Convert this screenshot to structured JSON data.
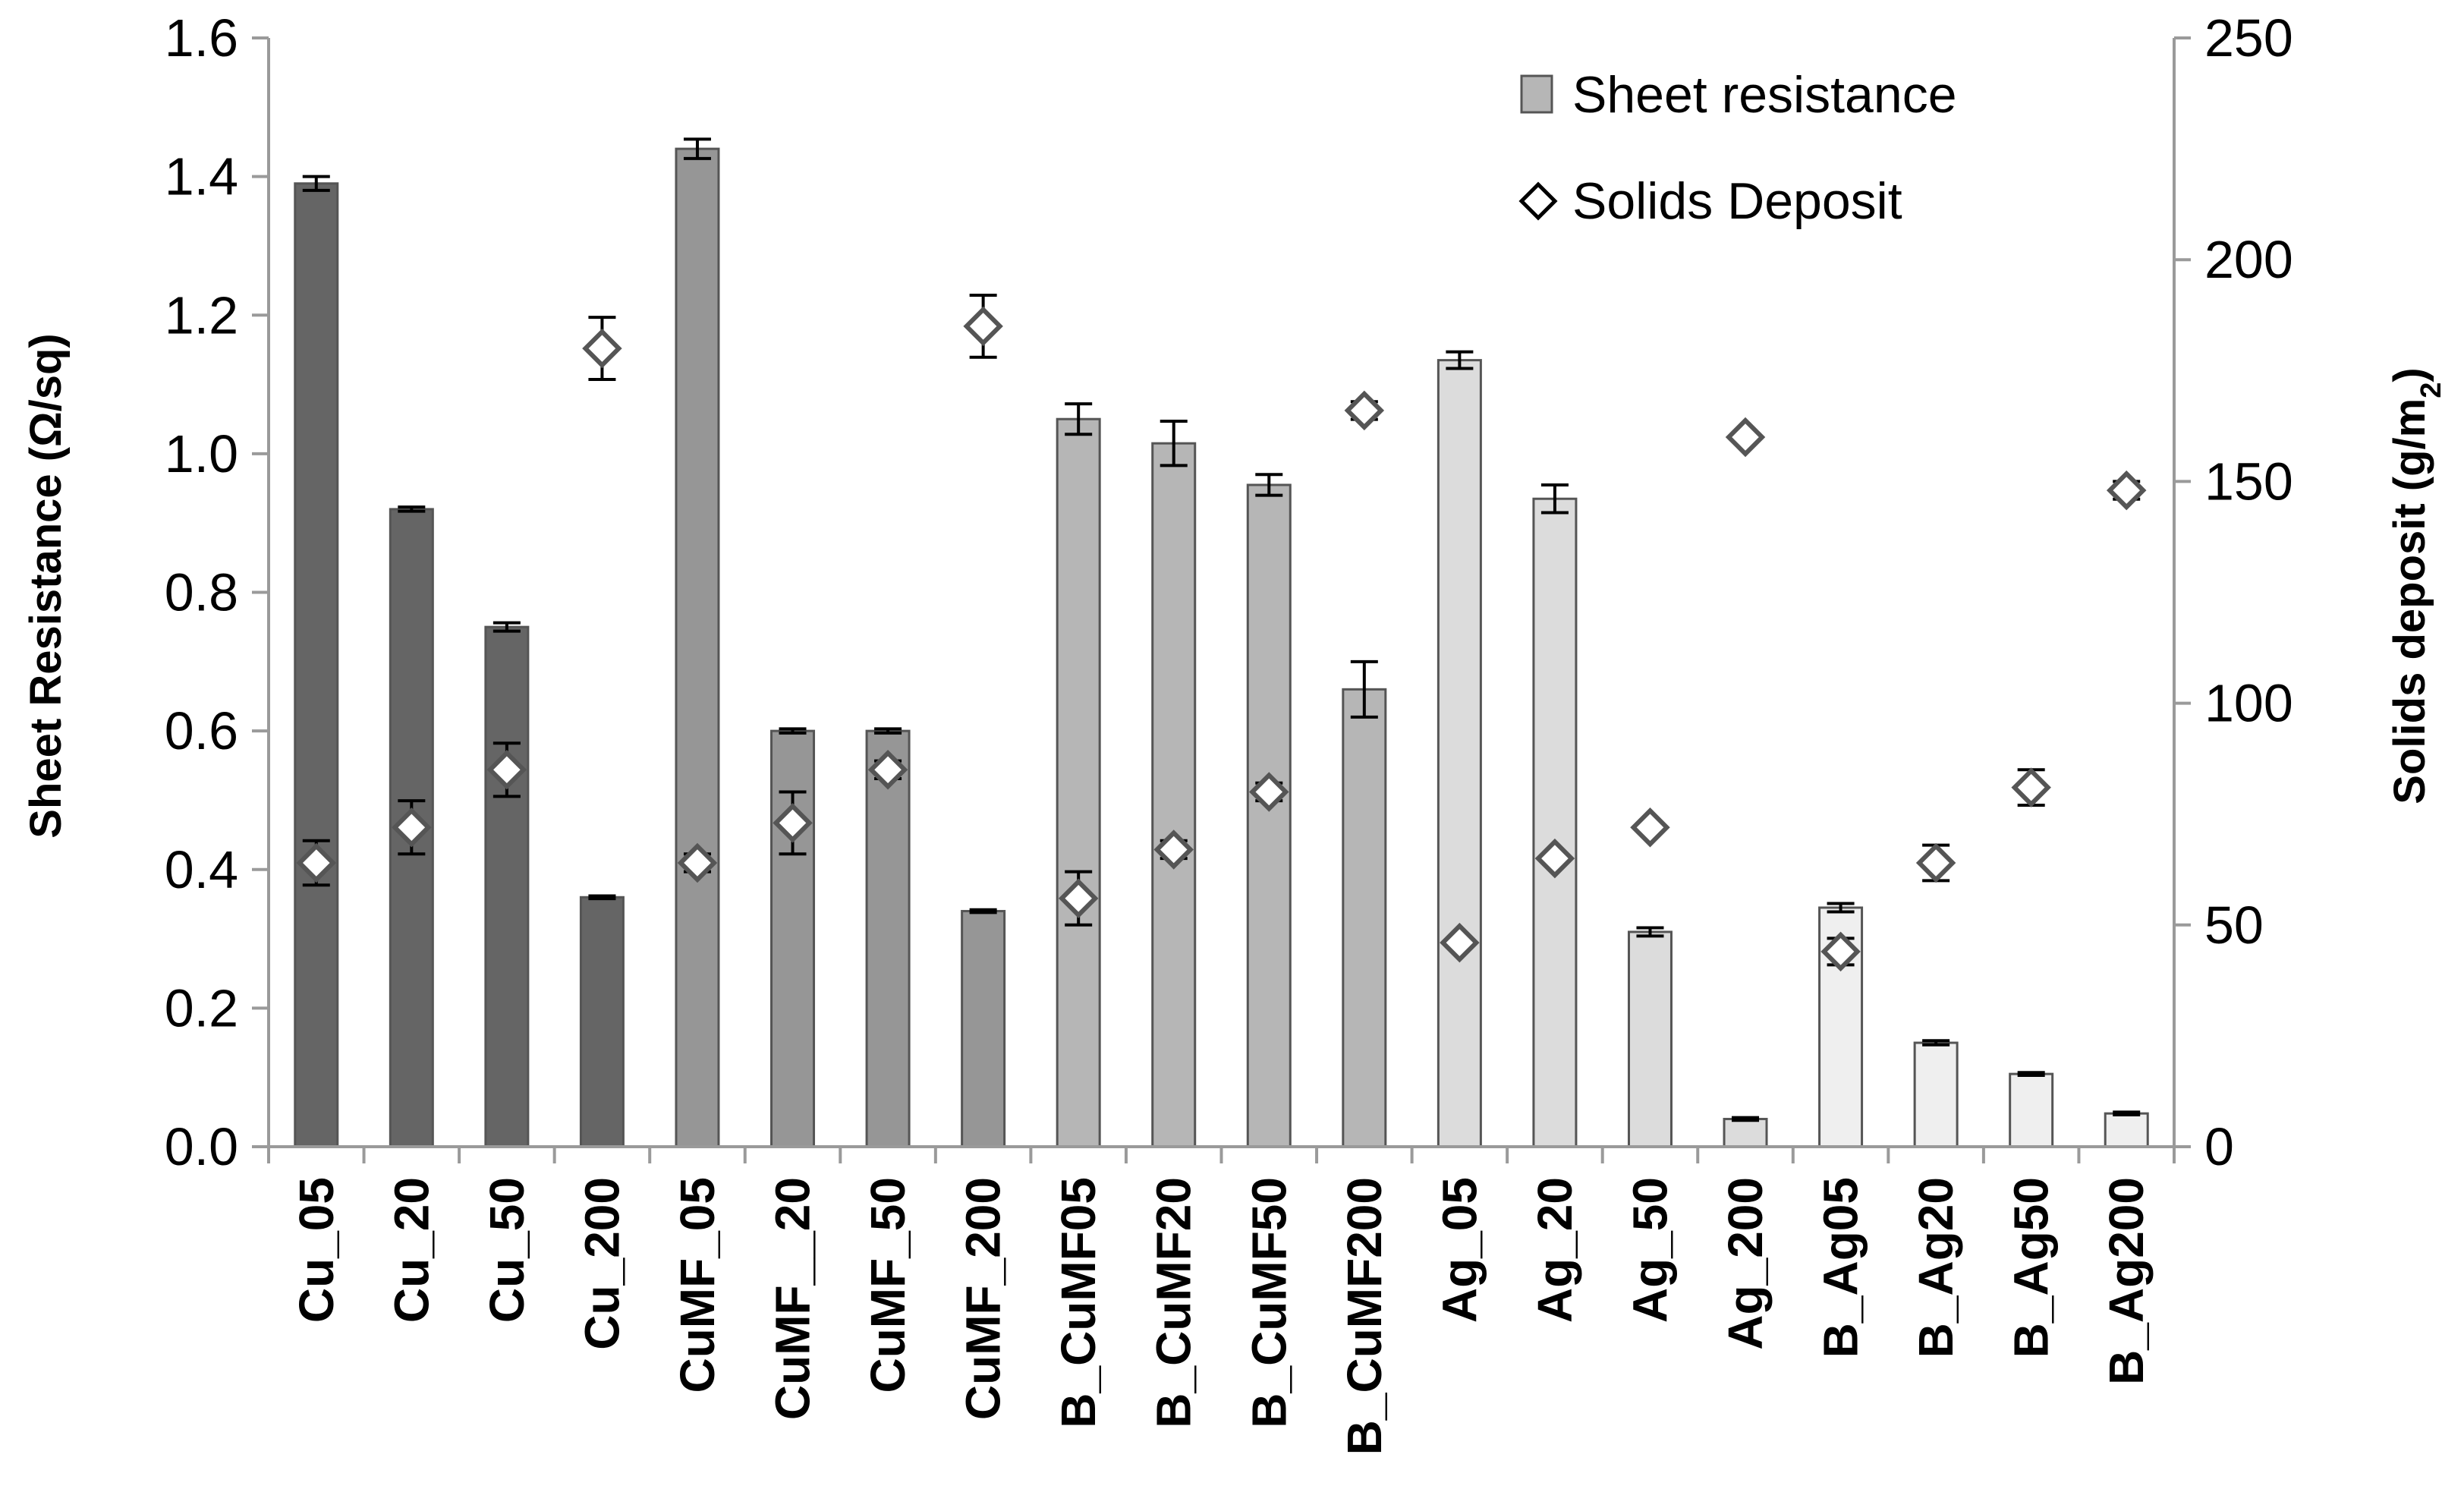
{
  "chart_data": {
    "type": "bar",
    "categories": [
      "Cu_05",
      "Cu_20",
      "Cu_50",
      "Cu_200",
      "CuMF_05",
      "CuMF__20",
      "CuMF_50",
      "CuMF_200",
      "B_CuMF05",
      "B_CuMF20",
      "B_CuMF50",
      "B_CuMF200",
      "Ag_05",
      "Ag_20",
      "Ag_50",
      "Ag_200",
      "B_Ag05",
      "B_Ag20",
      "B_Ag50",
      "B_Ag200"
    ],
    "series": [
      {
        "name": "Sheet resistance",
        "type": "bar",
        "axis": "left",
        "values": [
          1.39,
          0.92,
          0.75,
          0.36,
          1.44,
          0.6,
          0.6,
          0.34,
          1.05,
          1.015,
          0.955,
          0.66,
          1.135,
          0.935,
          0.31,
          0.04,
          0.345,
          0.15,
          0.105,
          0.048
        ],
        "errors": [
          0.01,
          0.003,
          0.006,
          0.002,
          0.014,
          0.003,
          0.003,
          0.002,
          0.022,
          0.032,
          0.015,
          0.04,
          0.012,
          0.02,
          0.006,
          0.002,
          0.006,
          0.003,
          0.002,
          0.002
        ],
        "colors": [
          "#656565",
          "#656565",
          "#656565",
          "#656565",
          "#969696",
          "#969696",
          "#969696",
          "#969696",
          "#b6b6b6",
          "#b6b6b6",
          "#b6b6b6",
          "#b6b6b6",
          "#dcdcdc",
          "#dcdcdc",
          "#dcdcdc",
          "#dcdcdc",
          "#efefef",
          "#efefef",
          "#efefef",
          "#efefef"
        ]
      },
      {
        "name": "Solids Deposit",
        "type": "scatter",
        "axis": "right",
        "marker": "diamond",
        "values": [
          64,
          72,
          85,
          180,
          64,
          73,
          85,
          185,
          56,
          67,
          80,
          166,
          46,
          65,
          72,
          160,
          44,
          64,
          81,
          148
        ],
        "errors": [
          5,
          6,
          6,
          7,
          2,
          7,
          2,
          7,
          6,
          2,
          2,
          2,
          0,
          0,
          0,
          0,
          3,
          4,
          4,
          2
        ]
      }
    ],
    "ylabel": "Sheet Resistance (Ω/sq)",
    "y2label_main": "Solids deposit (g/m",
    "y2label_sub": "2",
    "y2label_close": ")",
    "ylim": [
      0,
      1.6
    ],
    "y2lim": [
      0,
      250
    ],
    "yticks": [
      "0.0",
      "0.2",
      "0.4",
      "0.6",
      "0.8",
      "1.0",
      "1.2",
      "1.4",
      "1.6"
    ],
    "y2ticks": [
      "0",
      "50",
      "100",
      "150",
      "200",
      "250"
    ],
    "grid": false,
    "legend_position": "top-right"
  },
  "legend": {
    "bar_label": "Sheet resistance",
    "marker_label": "Solids Deposit"
  },
  "colors": {
    "axis": "#9a9a9a",
    "bar_outline": "#555555",
    "marker_fill": "#ffffff",
    "marker_stroke": "#555555"
  }
}
